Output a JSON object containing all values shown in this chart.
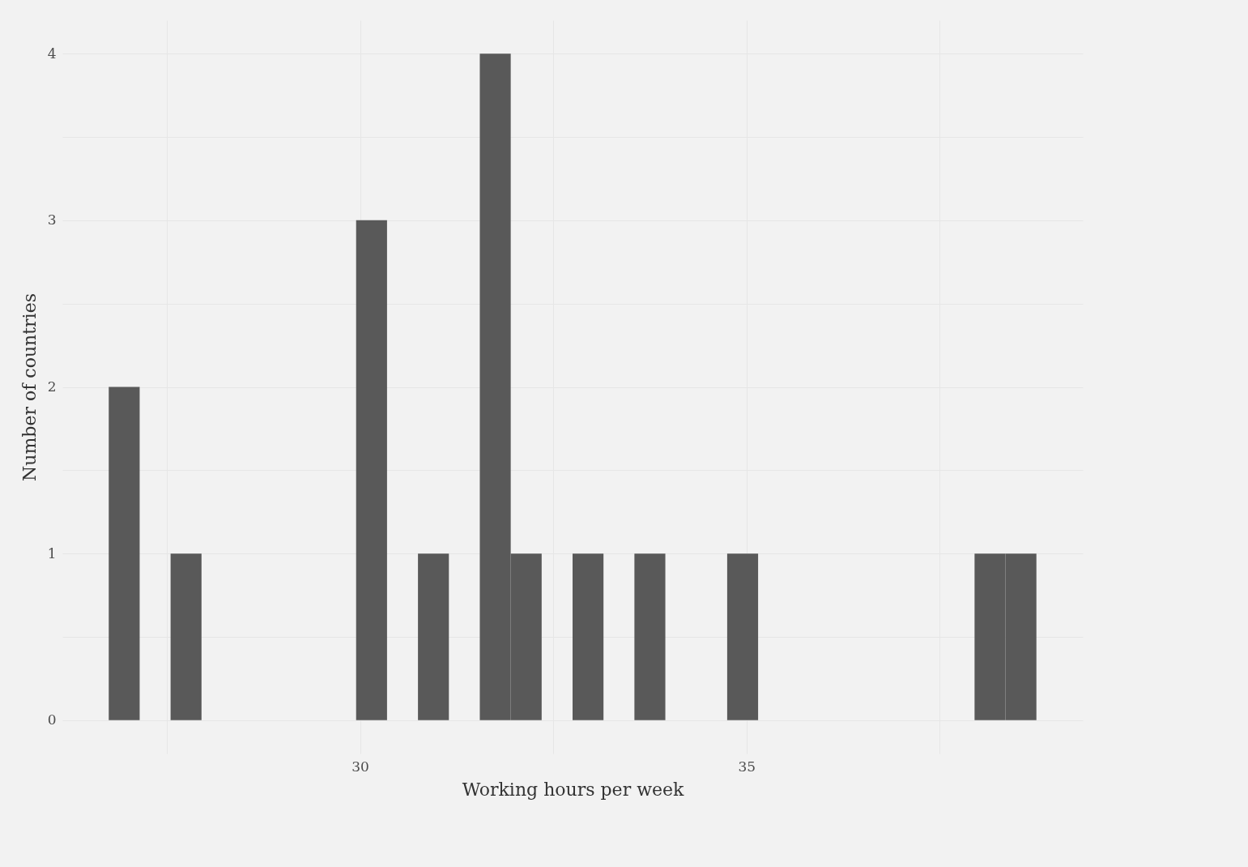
{
  "chart_data": {
    "type": "histogram",
    "xlabel": "Working hours per week",
    "ylabel": "Number of countries",
    "bins": [
      26.75,
      27.15,
      27.55,
      27.95,
      28.35,
      28.75,
      29.15,
      29.55,
      29.95,
      30.35,
      30.75,
      31.15,
      31.55,
      31.95,
      32.35,
      32.75,
      33.15,
      33.55,
      33.95,
      34.35,
      34.75,
      35.15,
      35.55,
      35.95,
      36.35,
      36.75,
      37.15,
      37.55,
      37.95,
      38.35,
      38.75
    ],
    "values": [
      2,
      0,
      1,
      0,
      0,
      0,
      0,
      0,
      3,
      0,
      1,
      0,
      4,
      1,
      0,
      1,
      0,
      1,
      0,
      0,
      1,
      0,
      0,
      0,
      0,
      0,
      0,
      0,
      1,
      1
    ],
    "color": "#595959",
    "xlim": [
      26.15,
      39.35
    ],
    "xticks": [
      {
        "value": 27.5,
        "label": null
      },
      30,
      {
        "value": 32.5,
        "label": null
      },
      35,
      {
        "value": 37.5,
        "label": null
      }
    ],
    "ylim": [
      -0.2,
      4.2
    ],
    "yticks": [
      0,
      {
        "value": 0.5,
        "label": null
      },
      1,
      {
        "value": 1.5,
        "label": null
      },
      2,
      {
        "value": 2.5,
        "label": null
      },
      3,
      {
        "value": 3.5,
        "label": null
      },
      4
    ],
    "grid": true
  }
}
